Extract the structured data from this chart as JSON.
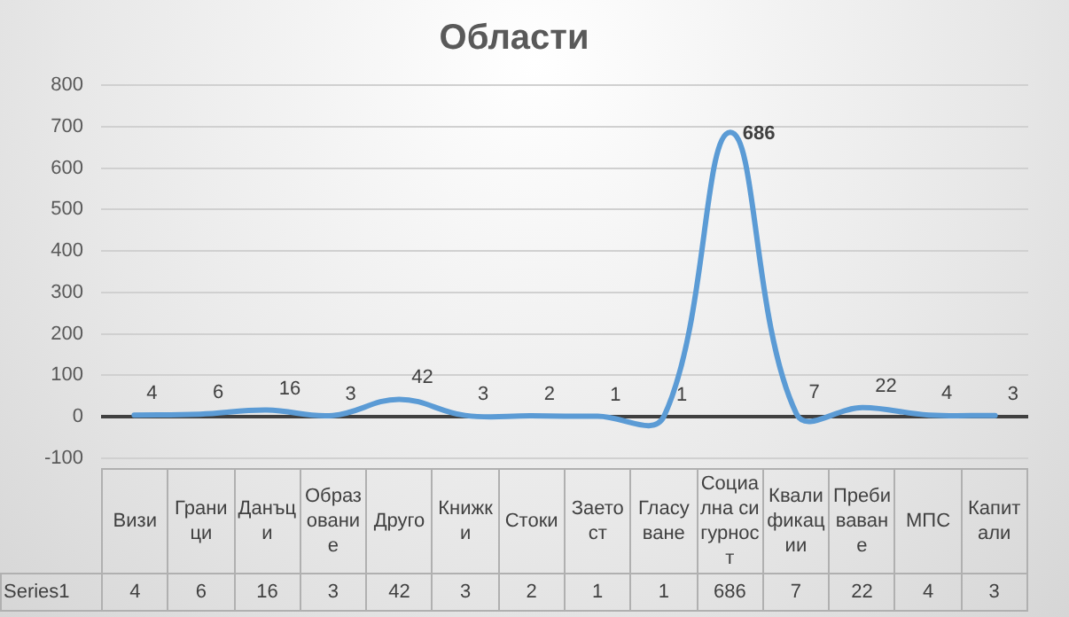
{
  "chart_data": {
    "type": "line",
    "title": "Области",
    "categories": [
      "Визи",
      "Граници",
      "Данъци",
      "Образование",
      "Друго",
      "Книжки",
      "Стоки",
      "Заетост",
      "Гласуване",
      "Социална сигурност",
      "Квалификации",
      "Пребиваване",
      "МПС",
      "Капитали"
    ],
    "series": [
      {
        "name": "Series1",
        "color": "#5b9bd5",
        "values": [
          4,
          6,
          16,
          3,
          42,
          3,
          2,
          1,
          1,
          686,
          7,
          22,
          4,
          3
        ]
      }
    ],
    "ylim": [
      -100,
      800
    ],
    "yticks": [
      -100,
      0,
      100,
      200,
      300,
      400,
      500,
      600,
      700,
      800
    ],
    "annotations": [
      {
        "text": "4",
        "x": "Визи",
        "y": 4
      },
      {
        "text": "6",
        "x": "Граници",
        "y": 6
      },
      {
        "text": "16",
        "x": "Данъци",
        "y": 16
      },
      {
        "text": "3",
        "x": "Образование",
        "y": 3
      },
      {
        "text": "42",
        "x": "Друго",
        "y": 42
      },
      {
        "text": "3",
        "x": "Книжки",
        "y": 3
      },
      {
        "text": "2",
        "x": "Стоки",
        "y": 2
      },
      {
        "text": "1",
        "x": "Заетост",
        "y": 1
      },
      {
        "text": "1",
        "x": "Гласуване",
        "y": 1
      },
      {
        "text": "686",
        "x": "Социална сигурност",
        "y": 686
      },
      {
        "text": "7",
        "x": "Квалификации",
        "y": 7
      },
      {
        "text": "22",
        "x": "Пребиваване",
        "y": 22
      },
      {
        "text": "4",
        "x": "МПС",
        "y": 4
      },
      {
        "text": "3",
        "x": "Капитали",
        "y": 3
      }
    ],
    "grid": "y",
    "legend": false,
    "data_labels": true,
    "marker": "none",
    "line_style": "solid"
  }
}
